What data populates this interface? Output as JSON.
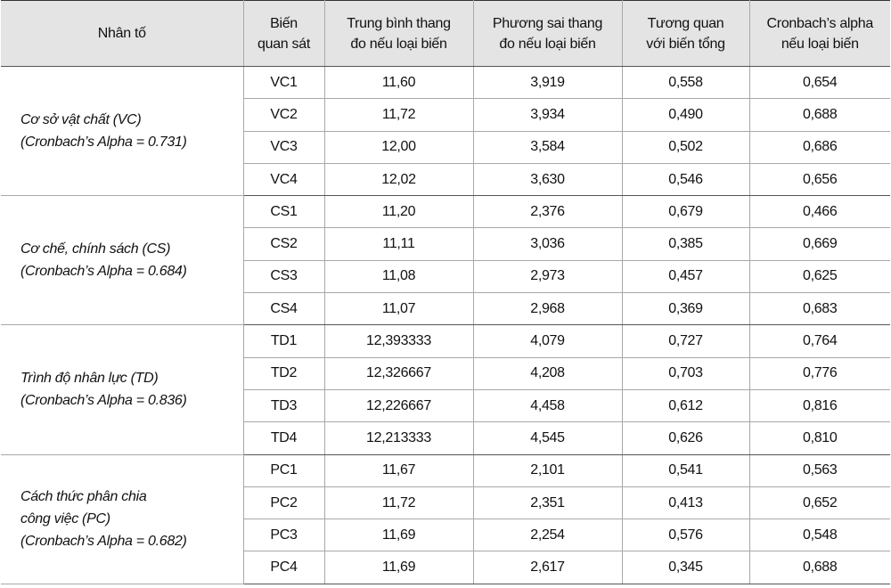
{
  "table": {
    "header": [
      [
        "Nhân tố"
      ],
      [
        "Biến",
        "quan sát"
      ],
      [
        "Trung bình thang",
        "đo nếu loại biến"
      ],
      [
        "Phương sai thang",
        "đo nếu loại biến"
      ],
      [
        "Tương quan",
        "với biến tổng"
      ],
      [
        "Cronbach’s alpha",
        "nếu loại biến"
      ]
    ],
    "groups": [
      {
        "factor": [
          "Cơ sở vật chất (VC)",
          "(Cronbach’s Alpha = 0.731)"
        ],
        "rows": [
          [
            "VC1",
            "11,60",
            "3,919",
            "0,558",
            "0,654"
          ],
          [
            "VC2",
            "11,72",
            "3,934",
            "0,490",
            "0,688"
          ],
          [
            "VC3",
            "12,00",
            "3,584",
            "0,502",
            "0,686"
          ],
          [
            "VC4",
            "12,02",
            "3,630",
            "0,546",
            "0,656"
          ]
        ]
      },
      {
        "factor": [
          "Cơ chế, chính sách (CS)",
          "(Cronbach’s Alpha = 0.684)"
        ],
        "rows": [
          [
            "CS1",
            "11,20",
            "2,376",
            "0,679",
            "0,466"
          ],
          [
            "CS2",
            "11,11",
            "3,036",
            "0,385",
            "0,669"
          ],
          [
            "CS3",
            "11,08",
            "2,973",
            "0,457",
            "0,625"
          ],
          [
            "CS4",
            "11,07",
            "2,968",
            "0,369",
            "0,683"
          ]
        ]
      },
      {
        "factor": [
          "Trình độ nhân lực (TD)",
          "(Cronbach’s Alpha = 0.836)"
        ],
        "rows": [
          [
            "TD1",
            "12,393333",
            "4,079",
            "0,727",
            "0,764"
          ],
          [
            "TD2",
            "12,326667",
            "4,208",
            "0,703",
            "0,776"
          ],
          [
            "TD3",
            "12,226667",
            "4,458",
            "0,612",
            "0,816"
          ],
          [
            "TD4",
            "12,213333",
            "4,545",
            "0,626",
            "0,810"
          ]
        ]
      },
      {
        "factor": [
          "Cách thức phân chia",
          "công việc (PC)",
          "(Cronbach’s Alpha = 0.682)"
        ],
        "rows": [
          [
            "PC1",
            "11,67",
            "2,101",
            "0,541",
            "0,563"
          ],
          [
            "PC2",
            "11,72",
            "2,351",
            "0,413",
            "0,652"
          ],
          [
            "PC3",
            "11,69",
            "2,254",
            "0,576",
            "0,548"
          ],
          [
            "PC4",
            "11,69",
            "2,617",
            "0,345",
            "0,688"
          ]
        ]
      }
    ]
  }
}
